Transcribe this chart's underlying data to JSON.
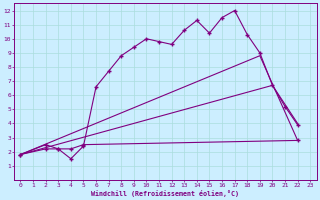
{
  "xlabel": "Windchill (Refroidissement éolien,°C)",
  "bg_color": "#cceeff",
  "grid_color": "#aadddd",
  "line_color": "#800080",
  "xlim": [
    -0.5,
    23.5
  ],
  "ylim": [
    0,
    12.5
  ],
  "xticks": [
    0,
    1,
    2,
    3,
    4,
    5,
    6,
    7,
    8,
    9,
    10,
    11,
    12,
    13,
    14,
    15,
    16,
    17,
    18,
    19,
    20,
    21,
    22,
    23
  ],
  "yticks": [
    1,
    2,
    3,
    4,
    5,
    6,
    7,
    8,
    9,
    10,
    11,
    12
  ],
  "series1_x": [
    0,
    2,
    3,
    4,
    5,
    6,
    7,
    8,
    9,
    10,
    11,
    12,
    13,
    14,
    15,
    16,
    17,
    18,
    19,
    20,
    21,
    22
  ],
  "series1_y": [
    1.8,
    2.5,
    2.2,
    1.5,
    2.4,
    6.6,
    7.7,
    8.8,
    9.4,
    10.0,
    9.8,
    9.6,
    10.6,
    11.3,
    10.4,
    11.5,
    12.0,
    10.3,
    9.0,
    6.7,
    5.2,
    3.9
  ],
  "series2_x": [
    0,
    2,
    3,
    4,
    5,
    22
  ],
  "series2_y": [
    1.8,
    2.2,
    2.2,
    2.2,
    2.5,
    2.8
  ],
  "series3_x": [
    0,
    20,
    22
  ],
  "series3_y": [
    1.8,
    6.7,
    4.0
  ],
  "series4_x": [
    0,
    19,
    22
  ],
  "series4_y": [
    1.8,
    8.8,
    2.8
  ]
}
